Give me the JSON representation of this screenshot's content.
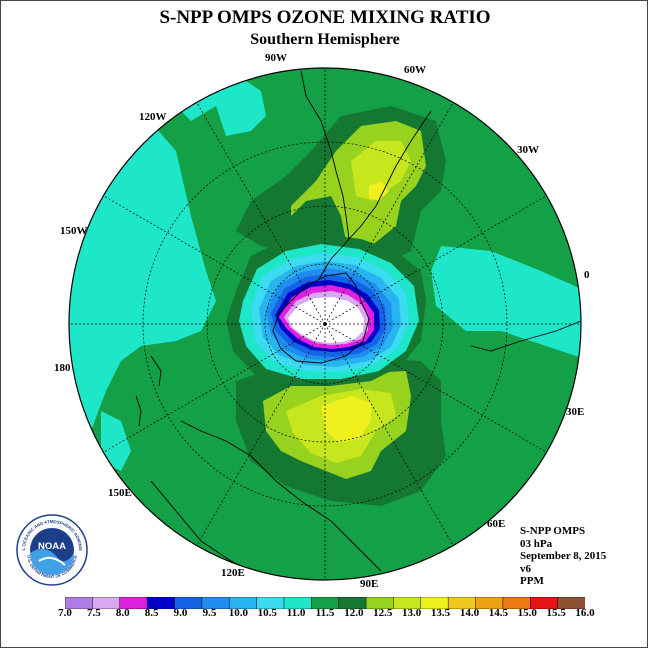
{
  "title": "S-NPP OMPS OZONE MIXING RATIO",
  "subtitle": "Southern Hemisphere",
  "longitude_labels": {
    "lon_90w": "90W",
    "lon_60w": "60W",
    "lon_30w": "30W",
    "lon_0": "0",
    "lon_30e": "30E",
    "lon_60e": "60E",
    "lon_90e": "90E",
    "lon_120e": "120E",
    "lon_150e": "150E",
    "lon_180": "180",
    "lon_150w": "150W",
    "lon_120w": "120W"
  },
  "info": {
    "instrument": "S-NPP OMPS",
    "level": "03 hPa",
    "date": "September 8, 2015",
    "version": "v6",
    "units": "PPM"
  },
  "logo": {
    "text": "NOAA",
    "ring_text": "NATIONAL OCEANIC AND ATMOSPHERIC ADMINISTRATION",
    "bottom_text": "U.S. DEPARTMENT OF COMMERCE"
  },
  "colorbar": {
    "labels": [
      "7.0",
      "7.5",
      "8.0",
      "8.5",
      "9.0",
      "9.5",
      "10.0",
      "10.5",
      "11.0",
      "11.5",
      "12.0",
      "12.5",
      "13.0",
      "13.5",
      "14.0",
      "14.5",
      "15.0",
      "15.5",
      "16.0"
    ],
    "colors": [
      "#b07ce8",
      "#d8a8f0",
      "#e020e0",
      "#0000c8",
      "#1464e6",
      "#1e8cf0",
      "#28b4f0",
      "#3cdcf0",
      "#1ee6c8",
      "#14a046",
      "#147832",
      "#96d21e",
      "#c8e61e",
      "#f0f01e",
      "#f0c81e",
      "#f0a014",
      "#f07814",
      "#e61414",
      "#8c5032"
    ]
  },
  "chart_data": {
    "type": "map",
    "projection": "polar stereographic, south pole",
    "variable": "ozone mixing ratio",
    "units": "PPM",
    "level": "03 hPa",
    "date": "September 8, 2015",
    "scale_min": 7.0,
    "scale_max": 16.0,
    "scale_step": 0.5,
    "features": [
      {
        "region": "polar vortex over Antarctica",
        "value_range": [
          7.0,
          9.0
        ]
      },
      {
        "region": "vortex edge ring",
        "value_range": [
          9.0,
          11.0
        ]
      },
      {
        "region": "mid latitudes",
        "value_range": [
          11.0,
          12.0
        ]
      },
      {
        "region": "maximum south of Australia (90E-150E)",
        "value_range": [
          12.0,
          13.5
        ]
      },
      {
        "region": "maximum near South America (30W-60W)",
        "value_range": [
          12.0,
          13.5
        ]
      },
      {
        "region": "Pacific / South Atlantic equatorward edge",
        "value_range": [
          10.5,
          11.0
        ]
      }
    ]
  }
}
